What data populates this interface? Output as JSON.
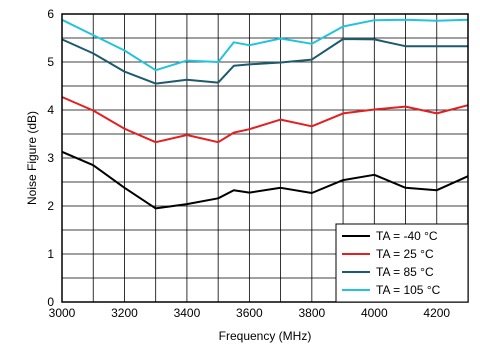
{
  "chart_data": {
    "type": "line",
    "xlabel": "Frequency (MHz)",
    "ylabel": "Noise Figure (dB)",
    "xlim": [
      3000,
      4300
    ],
    "ylim": [
      0,
      6
    ],
    "x_ticks": [
      3000,
      3200,
      3400,
      3600,
      3800,
      4000,
      4200
    ],
    "y_ticks": [
      0,
      1,
      2,
      3,
      4,
      5,
      6
    ],
    "grid": true,
    "legend_position": "bottom-right",
    "x": [
      3000,
      3100,
      3200,
      3300,
      3400,
      3500,
      3550,
      3600,
      3700,
      3800,
      3900,
      4000,
      4100,
      4200,
      4300
    ],
    "series": [
      {
        "name": "TA = -40 °C",
        "color": "#000000",
        "values": [
          3.13,
          2.85,
          2.38,
          1.95,
          2.04,
          2.16,
          2.33,
          2.28,
          2.38,
          2.27,
          2.54,
          2.65,
          2.38,
          2.33,
          2.62
        ]
      },
      {
        "name": "TA = 25 °C",
        "color": "#e41f1f",
        "values": [
          4.27,
          3.99,
          3.61,
          3.33,
          3.48,
          3.33,
          3.53,
          3.6,
          3.8,
          3.66,
          3.93,
          4.01,
          4.07,
          3.93,
          4.1
        ]
      },
      {
        "name": "TA = 85 °C",
        "color": "#1e5a6e",
        "values": [
          5.47,
          5.18,
          4.8,
          4.55,
          4.63,
          4.57,
          4.92,
          4.95,
          4.99,
          5.05,
          5.48,
          5.47,
          5.33,
          5.33,
          5.33
        ]
      },
      {
        "name": "TA = 105 °C",
        "color": "#22c3dd",
        "values": [
          5.88,
          5.56,
          5.24,
          4.83,
          5.03,
          5.0,
          5.41,
          5.35,
          5.49,
          5.38,
          5.74,
          5.87,
          5.88,
          5.86,
          5.88
        ]
      }
    ]
  }
}
